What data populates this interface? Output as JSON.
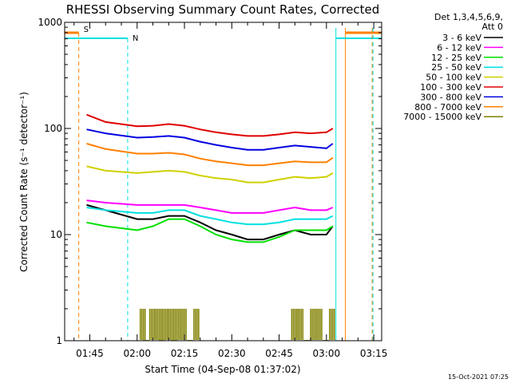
{
  "chart_data": {
    "type": "line",
    "title": "RHESSI Observing Summary Count Rates, Corrected",
    "xlabel": "Start Time (04-Sep-08 01:37:02)",
    "ylabel": "Corrected Count Rate (s⁻¹ detector⁻¹)",
    "y_scale": "log",
    "ylim": [
      1,
      1000
    ],
    "xlim": [
      "01:37:02",
      "03:17:30"
    ],
    "x_ticks": [
      "01:45",
      "02:00",
      "02:15",
      "02:30",
      "02:45",
      "03:00",
      "03:15"
    ],
    "y_ticks": [
      "1",
      "10",
      "100",
      "1000"
    ],
    "legend_position": "right",
    "legend_header": [
      "Det 1,3,4,5,6,9,",
      "Att 0"
    ],
    "footer_date": "15-Oct-2021 07:25",
    "annotations": [
      {
        "label": "S",
        "color": "#ff8000",
        "x": "01:41:30",
        "x_end": "03:06:00"
      },
      {
        "label": "N",
        "color": "#00e0e0",
        "x": "01:57:00",
        "x_end": "03:03:00"
      }
    ],
    "series": [
      {
        "name": "3 - 6 keV",
        "color": "#000000",
        "x": [
          "01:44",
          "01:50",
          "02:00",
          "02:05",
          "02:10",
          "02:15",
          "02:20",
          "02:25",
          "02:30",
          "02:35",
          "02:40",
          "02:45",
          "02:50",
          "02:55",
          "03:00",
          "03:02"
        ],
        "values": [
          19,
          17,
          14,
          14,
          15,
          15,
          13,
          11,
          10,
          9,
          9,
          10,
          11,
          10,
          10,
          12
        ]
      },
      {
        "name": "6 - 12 keV",
        "color": "#ff00ff",
        "x": [
          "01:44",
          "01:50",
          "02:00",
          "02:05",
          "02:10",
          "02:15",
          "02:20",
          "02:25",
          "02:30",
          "02:35",
          "02:40",
          "02:45",
          "02:50",
          "02:55",
          "03:00",
          "03:02"
        ],
        "values": [
          21,
          20,
          19,
          19,
          19,
          19,
          18,
          17,
          16,
          16,
          16,
          17,
          18,
          17,
          17,
          18
        ]
      },
      {
        "name": "12 - 25 keV",
        "color": "#00e000",
        "x": [
          "01:44",
          "01:50",
          "02:00",
          "02:05",
          "02:10",
          "02:15",
          "02:20",
          "02:25",
          "02:30",
          "02:35",
          "02:40",
          "02:45",
          "02:50",
          "02:55",
          "03:00",
          "03:02"
        ],
        "values": [
          13,
          12,
          11,
          12,
          14,
          14,
          12,
          10,
          9,
          8.5,
          8.5,
          9.5,
          11,
          11,
          11,
          12
        ]
      },
      {
        "name": "25 - 50 keV",
        "color": "#00e0e0",
        "x": [
          "01:44",
          "01:50",
          "02:00",
          "02:05",
          "02:10",
          "02:15",
          "02:20",
          "02:25",
          "02:30",
          "02:35",
          "02:40",
          "02:45",
          "02:50",
          "02:55",
          "03:00",
          "03:02"
        ],
        "values": [
          18,
          17,
          16,
          16,
          17,
          17,
          15,
          14,
          13,
          12.5,
          12.5,
          13,
          14,
          14,
          14,
          15
        ]
      },
      {
        "name": "50 - 100 keV",
        "color": "#d0d000",
        "x": [
          "01:44",
          "01:50",
          "02:00",
          "02:05",
          "02:10",
          "02:15",
          "02:20",
          "02:25",
          "02:30",
          "02:35",
          "02:40",
          "02:45",
          "02:50",
          "02:55",
          "03:00",
          "03:02"
        ],
        "values": [
          44,
          40,
          38,
          39,
          40,
          39,
          36,
          34,
          33,
          31,
          31,
          33,
          35,
          34,
          35,
          38
        ]
      },
      {
        "name": "100 - 300 keV",
        "color": "#e00000",
        "x": [
          "01:44",
          "01:50",
          "02:00",
          "02:05",
          "02:10",
          "02:15",
          "02:20",
          "02:25",
          "02:30",
          "02:35",
          "02:40",
          "02:45",
          "02:50",
          "02:55",
          "03:00",
          "03:02"
        ],
        "values": [
          135,
          115,
          105,
          106,
          110,
          106,
          98,
          92,
          88,
          85,
          85,
          88,
          92,
          90,
          92,
          100
        ]
      },
      {
        "name": "300 - 800 keV",
        "color": "#0000e0",
        "x": [
          "01:44",
          "01:50",
          "02:00",
          "02:05",
          "02:10",
          "02:15",
          "02:20",
          "02:25",
          "02:30",
          "02:35",
          "02:40",
          "02:45",
          "02:50",
          "02:55",
          "03:00",
          "03:02"
        ],
        "values": [
          98,
          90,
          82,
          83,
          85,
          82,
          75,
          70,
          66,
          63,
          63,
          66,
          69,
          67,
          65,
          72
        ]
      },
      {
        "name": "800 - 7000 keV",
        "color": "#ff8000",
        "x": [
          "01:44",
          "01:50",
          "02:00",
          "02:05",
          "02:10",
          "02:15",
          "02:20",
          "02:25",
          "02:30",
          "02:35",
          "02:40",
          "02:45",
          "02:50",
          "02:55",
          "03:00",
          "03:02"
        ],
        "values": [
          72,
          64,
          58,
          58,
          59,
          57,
          52,
          49,
          47,
          45,
          45,
          47,
          49,
          48,
          48,
          53
        ]
      },
      {
        "name": "7000 - 15000 keV",
        "color": "#808000",
        "x": [
          "02:01",
          "02:02",
          "02:04",
          "02:06",
          "02:07",
          "02:08",
          "02:10",
          "02:11",
          "02:12",
          "02:14",
          "02:16",
          "02:18",
          "02:49",
          "02:51",
          "02:53",
          "02:55",
          "02:57",
          "02:59",
          "03:01"
        ],
        "values": [
          2,
          1,
          2,
          2,
          1,
          2,
          2,
          1,
          2,
          2,
          1,
          2,
          2,
          2,
          1,
          2,
          2,
          1,
          2
        ]
      }
    ]
  }
}
